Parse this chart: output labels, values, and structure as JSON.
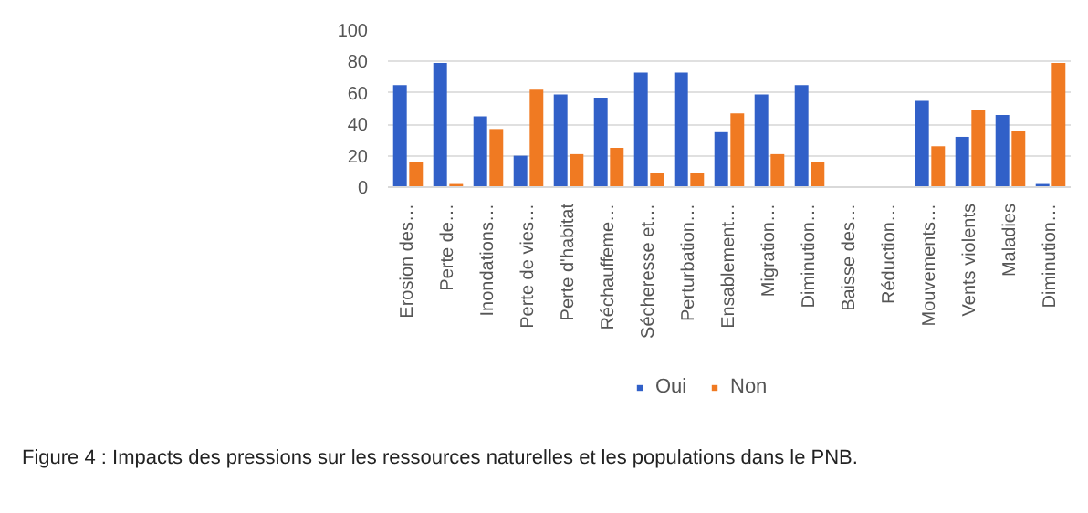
{
  "chart_data": {
    "type": "bar",
    "categories": [
      "Erosion des…",
      "Perte de…",
      "Inondations…",
      "Perte de vies…",
      "Perte d'habitat",
      "Réchauffeme…",
      "Sécheresse et…",
      "Perturbation…",
      "Ensablement…",
      "Migration…",
      "Diminution…",
      "Baisse des…",
      "Réduction…",
      "Mouvements…",
      "Vents violents",
      "Maladies",
      "Diminution…"
    ],
    "series": [
      {
        "name": "Oui",
        "color": "#3160c8",
        "values": [
          65,
          79,
          45,
          20,
          59,
          57,
          73,
          73,
          35,
          59,
          65,
          null,
          null,
          55,
          32,
          46,
          2
        ]
      },
      {
        "name": "Non",
        "color": "#f07a22",
        "values": [
          16,
          2,
          37,
          62,
          21,
          25,
          9,
          9,
          47,
          21,
          16,
          null,
          null,
          26,
          49,
          36,
          79
        ]
      }
    ],
    "ylim": [
      0,
      100
    ],
    "yticks": [
      0,
      20,
      40,
      60,
      80,
      100
    ],
    "grid": "y",
    "legend": "bottom",
    "annotations": [
      "Figure 4 : Impacts des pressions sur les ressources naturelles et les populations dans le PNB."
    ]
  }
}
